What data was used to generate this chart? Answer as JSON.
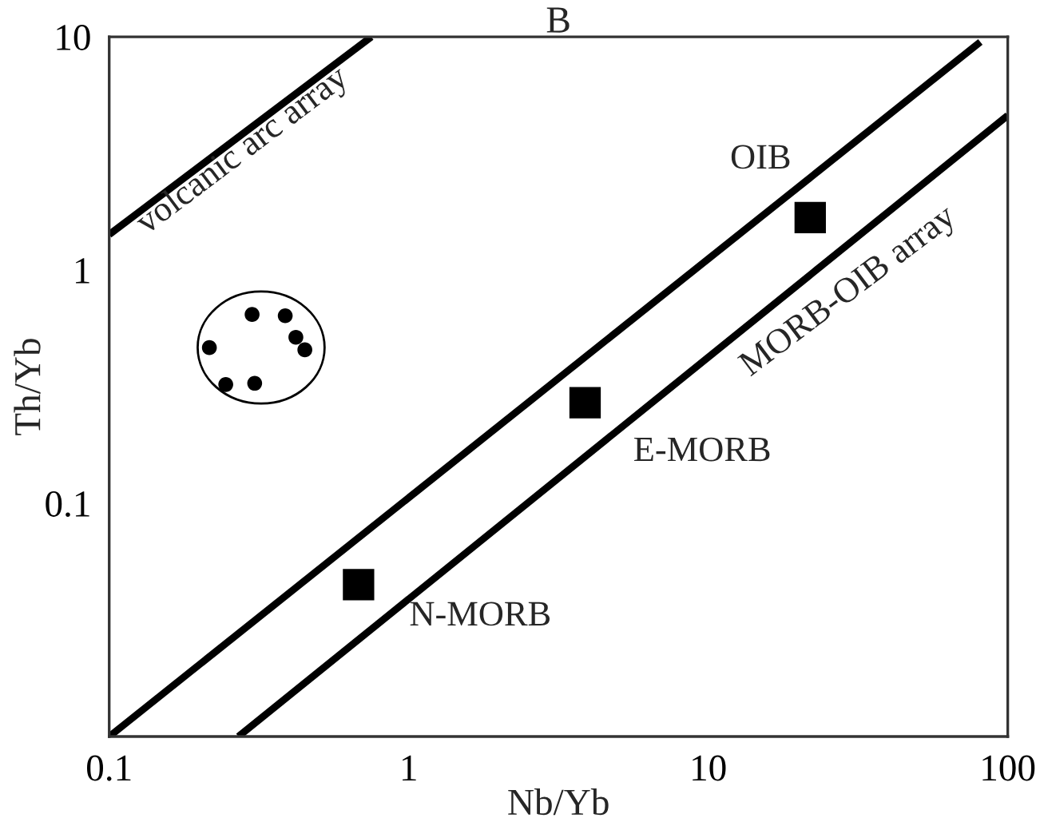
{
  "chart_data": {
    "type": "scatter",
    "title": "B",
    "xlabel": "Nb/Yb",
    "ylabel": "Th/Yb",
    "log": "xy",
    "xlim": [
      0.1,
      100
    ],
    "xticks": [
      0.1,
      1,
      10,
      100
    ],
    "ylim": [
      0.01,
      10
    ],
    "yticks": [
      0.1,
      1,
      10
    ],
    "grid": false,
    "legend": false,
    "series": [
      {
        "type": "line",
        "color": "#000000",
        "marker": "none",
        "line_style": "solid",
        "x": [
          0.1,
          0.75
        ],
        "values": [
          1.42,
          10
        ]
      },
      {
        "type": "line",
        "color": "#000000",
        "marker": "none",
        "line_style": "solid",
        "x": [
          0.1,
          81
        ],
        "values": [
          0.01,
          9.5
        ]
      },
      {
        "type": "line",
        "color": "#000000",
        "marker": "none",
        "line_style": "solid",
        "x": [
          0.27,
          100
        ],
        "values": [
          0.01,
          4.6
        ]
      },
      {
        "color": "#000000",
        "marker": "circle",
        "x": [
          0.216,
          0.3,
          0.387,
          0.42,
          0.45,
          0.245,
          0.306
        ],
        "values": [
          0.465,
          0.645,
          0.637,
          0.515,
          0.455,
          0.323,
          0.327
        ]
      },
      {
        "color": "#000000",
        "marker": "square",
        "x": [
          0.68,
          3.88,
          21.9
        ],
        "values": [
          0.0448,
          0.27,
          1.68
        ]
      }
    ],
    "annotations": [
      "volcanic arc array",
      "OIB",
      "MORB-OIB array",
      "E-MORB",
      "N-MORB"
    ]
  }
}
